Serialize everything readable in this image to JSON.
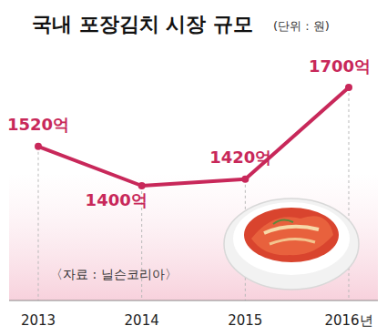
{
  "chart_data": {
    "type": "line",
    "title": "국내 포장김치 시장 규모",
    "subtitle": "(단위 : 원)",
    "source": "〈자료 : 닐슨코리아〉",
    "categories": [
      "2013",
      "2014",
      "2015",
      "2016년"
    ],
    "values": [
      1520,
      1400,
      1420,
      1700
    ],
    "value_labels": [
      "1520억",
      "1400억",
      "1420억",
      "1700억"
    ],
    "color": "#c8285a",
    "ylim": [
      1050,
      1850
    ],
    "tick_labels": "x",
    "data_labels": true,
    "marker": "circle",
    "line_style": "solid",
    "grid": false
  }
}
